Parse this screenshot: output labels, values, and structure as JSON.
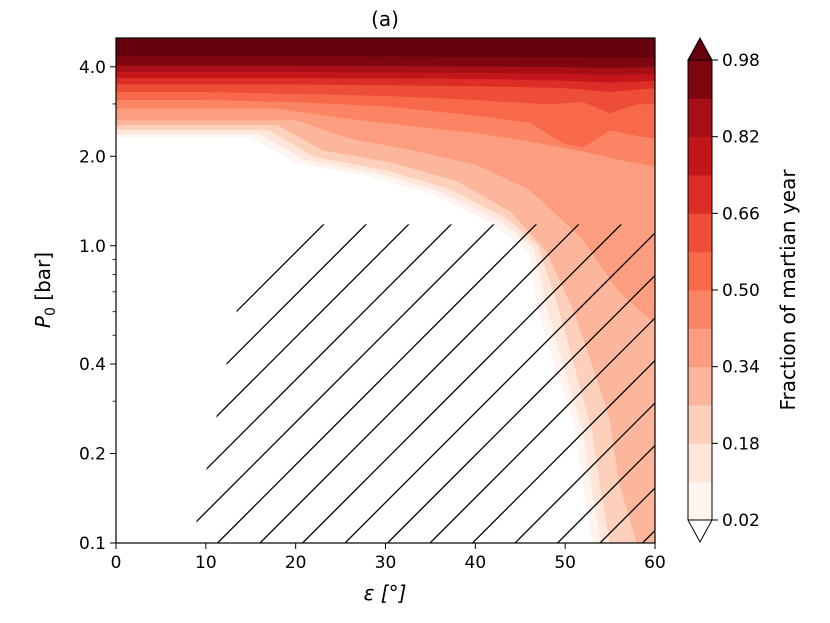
{
  "chart_data": {
    "type": "filled-contour",
    "title": "(a)",
    "xlabel": "ε [°]",
    "ylabel_main": "P",
    "ylabel_sub": "0",
    "ylabel_unit": " [bar]",
    "x_scale": "linear",
    "y_scale": "log",
    "xlim": [
      0,
      60
    ],
    "ylim": [
      0.1,
      5.0
    ],
    "x_ticks": [
      0,
      10,
      20,
      30,
      40,
      50,
      60
    ],
    "x_tick_labels": [
      "0",
      "10",
      "20",
      "30",
      "40",
      "50",
      "60"
    ],
    "y_ticks": [
      0.1,
      0.2,
      0.4,
      1.0,
      2.0,
      4.0
    ],
    "y_tick_labels": [
      "0.1",
      "0.2",
      "0.4",
      "1.0",
      "2.0",
      "4.0"
    ],
    "y_minor_ticks": [
      0.3,
      0.5,
      0.6,
      0.7,
      0.8,
      0.9,
      3.0
    ],
    "grid": false,
    "colorbar": {
      "label": "Fraction of martian year",
      "ticks": [
        0.02,
        0.18,
        0.34,
        0.5,
        0.66,
        0.82,
        0.98
      ],
      "tick_labels": [
        "0.02",
        "0.18",
        "0.34",
        "0.50",
        "0.66",
        "0.82",
        "0.98"
      ],
      "extend": "both"
    },
    "levels": [
      0.02,
      0.1,
      0.18,
      0.26,
      0.34,
      0.42,
      0.5,
      0.58,
      0.66,
      0.74,
      0.82,
      0.9,
      0.98
    ],
    "colors": [
      "#fff5f0",
      "#fee6da",
      "#fdd0bb",
      "#fcb69b",
      "#fc9d7f",
      "#fb8464",
      "#f7694a",
      "#ee4d37",
      "#dc2e26",
      "#c3161b",
      "#a50f15",
      "#7e0610",
      "#67000d"
    ],
    "contour_boundaries": [
      {
        "level": 0.02,
        "x": [
          0,
          15,
          20,
          28,
          35,
          42,
          46,
          47,
          49,
          51,
          52,
          53,
          60
        ],
        "y": [
          2.32,
          2.32,
          1.9,
          1.72,
          1.5,
          1.18,
          0.95,
          0.6,
          0.38,
          0.25,
          0.16,
          0.1,
          0.1
        ]
      },
      {
        "level": 0.1,
        "x": [
          0,
          16,
          21,
          29,
          36,
          43,
          46.5,
          48,
          50,
          52,
          53,
          54,
          60
        ],
        "y": [
          2.38,
          2.38,
          1.95,
          1.76,
          1.53,
          1.2,
          0.98,
          0.62,
          0.38,
          0.24,
          0.15,
          0.1,
          0.1
        ]
      },
      {
        "level": 0.18,
        "x": [
          0,
          17,
          22,
          30,
          37,
          43.5,
          47,
          49,
          51,
          53,
          54,
          55,
          60
        ],
        "y": [
          2.46,
          2.46,
          2.0,
          1.8,
          1.56,
          1.24,
          1.0,
          0.66,
          0.4,
          0.24,
          0.15,
          0.1,
          0.1
        ]
      },
      {
        "level": 0.26,
        "x": [
          0,
          18,
          23,
          31,
          38,
          44,
          48,
          51,
          53,
          55,
          56,
          58,
          60
        ],
        "y": [
          2.55,
          2.55,
          2.1,
          1.9,
          1.65,
          1.3,
          0.95,
          0.6,
          0.4,
          0.26,
          0.16,
          0.1,
          0.1
        ]
      },
      {
        "level": 0.34,
        "x": [
          0,
          20,
          26,
          33,
          40,
          46,
          52,
          56,
          60
        ],
        "y": [
          2.65,
          2.65,
          2.3,
          2.1,
          1.88,
          1.55,
          1.05,
          0.7,
          0.55
        ]
      },
      {
        "level": 0.42,
        "x": [
          0,
          18,
          25,
          32,
          40,
          46,
          52,
          56,
          60
        ],
        "y": [
          2.9,
          2.9,
          2.7,
          2.55,
          2.4,
          2.25,
          2.08,
          1.95,
          1.85
        ]
      },
      {
        "level": 0.5,
        "x": [
          0,
          10,
          20,
          30,
          40,
          46,
          50,
          52,
          55,
          58,
          60
        ],
        "y": [
          3.1,
          3.1,
          3.05,
          2.95,
          2.75,
          2.6,
          2.2,
          2.15,
          2.45,
          2.35,
          2.3
        ]
      },
      {
        "level": 0.58,
        "x": [
          0,
          10,
          20,
          30,
          40,
          48,
          52,
          55,
          58,
          60
        ],
        "y": [
          3.3,
          3.3,
          3.25,
          3.2,
          3.1,
          3.0,
          3.05,
          2.8,
          3.0,
          3.0
        ]
      },
      {
        "level": 0.66,
        "x": [
          0,
          20,
          40,
          50,
          55,
          60
        ],
        "y": [
          3.5,
          3.5,
          3.45,
          3.4,
          3.3,
          3.4
        ]
      },
      {
        "level": 0.74,
        "x": [
          0,
          20,
          40,
          50,
          55,
          60
        ],
        "y": [
          3.68,
          3.68,
          3.65,
          3.6,
          3.55,
          3.6
        ]
      },
      {
        "level": 0.82,
        "x": [
          0,
          20,
          40,
          50,
          55,
          60
        ],
        "y": [
          3.85,
          3.85,
          3.83,
          3.8,
          3.76,
          3.8
        ]
      },
      {
        "level": 0.9,
        "x": [
          0,
          20,
          40,
          50,
          55,
          60
        ],
        "y": [
          4.05,
          4.05,
          4.02,
          4.0,
          3.98,
          4.0
        ]
      },
      {
        "level": 0.98,
        "x": [
          0,
          20,
          40,
          60
        ],
        "y": [
          4.35,
          4.35,
          4.33,
          4.3
        ]
      }
    ],
    "hatch_region": {
      "x": [
        13.5,
        18.5,
        60,
        60,
        8.5,
        13.5
      ],
      "y": [
        0.62,
        1.18,
        1.18,
        0.1,
        0.1,
        0.62
      ]
    }
  }
}
